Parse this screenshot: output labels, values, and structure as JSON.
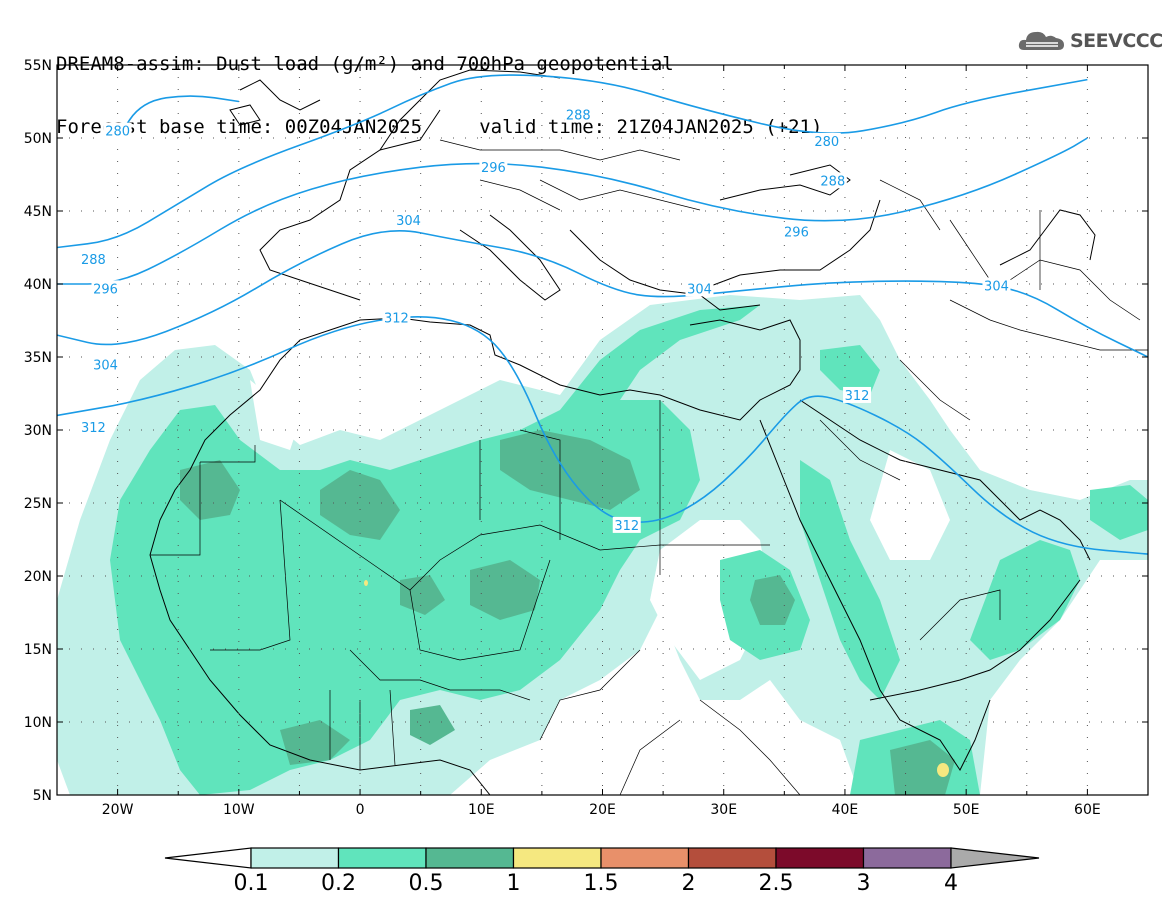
{
  "title": {
    "line1": "DREAM8-assim: Dust load (g/m²) and 700hPa geopotential",
    "line2": "Forecast base time: 00Z04JAN2025     valid time: 21Z04JAN2025 (+21)"
  },
  "logo": {
    "icon": "cloud-icon",
    "text": "SEEVCCC"
  },
  "map": {
    "lon_range": [
      -25,
      65
    ],
    "lat_range": [
      5,
      55
    ],
    "lon_ticks": [
      {
        "value": -20,
        "label": "20W"
      },
      {
        "value": -10,
        "label": "10W"
      },
      {
        "value": 0,
        "label": "0"
      },
      {
        "value": 10,
        "label": "10E"
      },
      {
        "value": 20,
        "label": "20E"
      },
      {
        "value": 30,
        "label": "30E"
      },
      {
        "value": 40,
        "label": "40E"
      },
      {
        "value": 50,
        "label": "50E"
      },
      {
        "value": 60,
        "label": "60E"
      }
    ],
    "lat_ticks": [
      {
        "value": 55,
        "label": "55N"
      },
      {
        "value": 50,
        "label": "50N"
      },
      {
        "value": 45,
        "label": "45N"
      },
      {
        "value": 40,
        "label": "40N"
      },
      {
        "value": 35,
        "label": "35N"
      },
      {
        "value": 30,
        "label": "30N"
      },
      {
        "value": 25,
        "label": "25N"
      },
      {
        "value": 20,
        "label": "20N"
      },
      {
        "value": 15,
        "label": "15N"
      },
      {
        "value": 10,
        "label": "10N"
      },
      {
        "value": 5,
        "label": "5N"
      }
    ],
    "contour_color": "#1a9be6",
    "contours": [
      {
        "value": "280",
        "points": [
          [
            -20,
            50
          ],
          [
            -18,
            52.5
          ],
          [
            -14,
            53
          ],
          [
            -10,
            52.5
          ]
        ],
        "labels": [
          [
            -20,
            50.5
          ],
          [
            38.5,
            49.8
          ]
        ]
      },
      {
        "value": "288",
        "points": [
          [
            -25,
            42.5
          ],
          [
            -20,
            43
          ],
          [
            -15,
            45.5
          ],
          [
            -10,
            48
          ],
          [
            0,
            51
          ],
          [
            5,
            53
          ],
          [
            10,
            54.5
          ],
          [
            20,
            54
          ],
          [
            28,
            52
          ],
          [
            38,
            50
          ],
          [
            45,
            51
          ],
          [
            50,
            52.5
          ],
          [
            60,
            54
          ]
        ],
        "labels": [
          [
            -22,
            41.7
          ],
          [
            18,
            51.6
          ],
          [
            39,
            47.1
          ]
        ]
      },
      {
        "value": "296",
        "points": [
          [
            -25,
            40
          ],
          [
            -20,
            40
          ],
          [
            -15,
            42
          ],
          [
            -8,
            45.5
          ],
          [
            0,
            47.5
          ],
          [
            10,
            48.5
          ],
          [
            20,
            47.5
          ],
          [
            30,
            45
          ],
          [
            40,
            44
          ],
          [
            50,
            46
          ],
          [
            58,
            49
          ],
          [
            60,
            50
          ]
        ],
        "labels": [
          [
            -21,
            39.7
          ],
          [
            11,
            48
          ],
          [
            36,
            43.6
          ]
        ]
      },
      {
        "value": "304",
        "points": [
          [
            -25,
            36.5
          ],
          [
            -20,
            35.5
          ],
          [
            -12,
            38
          ],
          [
            -5,
            41.5
          ],
          [
            2,
            44
          ],
          [
            8,
            43
          ],
          [
            15,
            42
          ],
          [
            21,
            39.5
          ],
          [
            25,
            39
          ],
          [
            32,
            39.6
          ],
          [
            40,
            40.2
          ],
          [
            50,
            40.2
          ],
          [
            55,
            39.5
          ],
          [
            60,
            37
          ],
          [
            65,
            35
          ]
        ],
        "labels": [
          [
            -21,
            34.5
          ],
          [
            4,
            44.4
          ],
          [
            28,
            39.7
          ],
          [
            52.5,
            39.9
          ]
        ]
      },
      {
        "value": "312",
        "points": [
          [
            -25,
            31
          ],
          [
            -18,
            32
          ],
          [
            -10,
            34
          ],
          [
            -2,
            37
          ],
          [
            5,
            38
          ],
          [
            10,
            37
          ],
          [
            13,
            34
          ],
          [
            16,
            28
          ],
          [
            20,
            24
          ],
          [
            24,
            23.5
          ],
          [
            28,
            25
          ],
          [
            32,
            28
          ],
          [
            35,
            31
          ],
          [
            37,
            32.5
          ],
          [
            40,
            32
          ],
          [
            45,
            30
          ],
          [
            48,
            28
          ],
          [
            53,
            24
          ],
          [
            58,
            22
          ],
          [
            65,
            21.5
          ]
        ],
        "labels": [
          [
            -22,
            30.2
          ],
          [
            3,
            37.7
          ],
          [
            22,
            23.5
          ],
          [
            41,
            32.4
          ]
        ]
      }
    ]
  },
  "colorbar": {
    "colors": [
      "#ffffff",
      "#c1f0e8",
      "#60e4bc",
      "#55b892",
      "#f5e880",
      "#e8906a",
      "#b44e3c",
      "#7c0a2a",
      "#8c6a9c",
      "#aaaaaa"
    ],
    "labels": [
      "0.1",
      "0.2",
      "0.5",
      "1",
      "1.5",
      "2",
      "2.5",
      "3",
      "4"
    ]
  }
}
